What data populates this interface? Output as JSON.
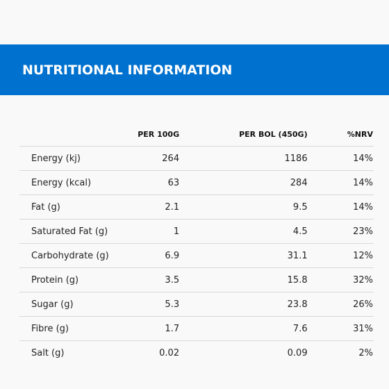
{
  "banner": {
    "title": "NUTRITIONAL INFORMATION",
    "background_color": "#0071ce",
    "text_color": "#ffffff"
  },
  "table": {
    "headers": {
      "label": "",
      "per_100g": "PER 100G",
      "per_bol": "PER BOL (450G)",
      "nrv": "%NRV"
    },
    "rows": [
      {
        "label": "Energy (kj)",
        "per_100g": "264",
        "per_bol": "1186",
        "nrv": "14%"
      },
      {
        "label": "Energy (kcal)",
        "per_100g": "63",
        "per_bol": "284",
        "nrv": "14%"
      },
      {
        "label": "Fat (g)",
        "per_100g": "2.1",
        "per_bol": "9.5",
        "nrv": "14%"
      },
      {
        "label": "Saturated Fat (g)",
        "per_100g": "1",
        "per_bol": "4.5",
        "nrv": "23%"
      },
      {
        "label": "Carbohydrate (g)",
        "per_100g": "6.9",
        "per_bol": "31.1",
        "nrv": "12%"
      },
      {
        "label": "Protein (g)",
        "per_100g": "3.5",
        "per_bol": "15.8",
        "nrv": "32%"
      },
      {
        "label": "Sugar (g)",
        "per_100g": "5.3",
        "per_bol": "23.8",
        "nrv": "26%"
      },
      {
        "label": "Fibre (g)",
        "per_100g": "1.7",
        "per_bol": "7.6",
        "nrv": "31%"
      },
      {
        "label": "Salt (g)",
        "per_100g": "0.02",
        "per_bol": "0.09",
        "nrv": "2%"
      }
    ]
  }
}
